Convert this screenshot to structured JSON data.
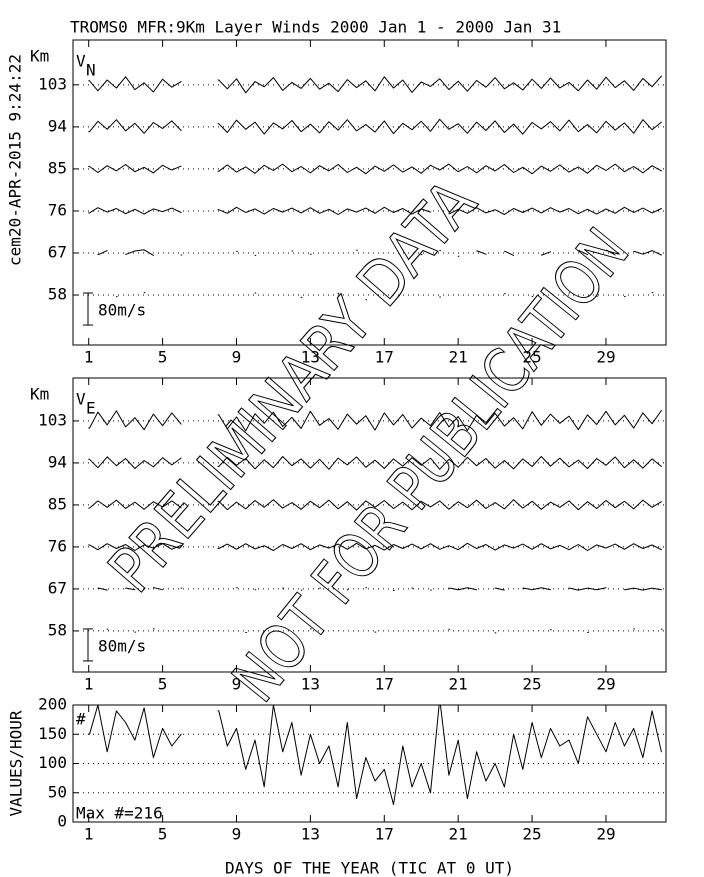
{
  "title": "TROMS0 MFR:9Km Layer Winds 2000 Jan  1 - 2000 Jan 31",
  "stamp": "cem20-APR-2015  9:24:22",
  "watermark": [
    "PRELIMINARY DATA",
    "NOT FOR PUBLICATION"
  ],
  "chart_data": [
    {
      "type": "traces",
      "y_unit": "Km",
      "component": "V",
      "component_sub": "N",
      "xlim": [
        0.15,
        32.25
      ],
      "xticks": [
        1,
        5,
        9,
        13,
        17,
        21,
        25,
        29
      ],
      "ylim": [
        47.3,
        112.6
      ],
      "yticks": [
        58,
        67,
        76,
        85,
        94,
        103
      ],
      "grid": true,
      "scale_bar": {
        "value": 80,
        "label": "80m/s"
      },
      "x": [
        1,
        1.5,
        2,
        2.5,
        3,
        3.5,
        4,
        4.5,
        5,
        5.5,
        6,
        6.5,
        7,
        7.5,
        8,
        8.5,
        9,
        9.5,
        10,
        10.5,
        11,
        11.5,
        12,
        12.5,
        13,
        13.5,
        14,
        14.5,
        15,
        15.5,
        16,
        16.5,
        17,
        17.5,
        18,
        18.5,
        19,
        19.5,
        20,
        20.5,
        21,
        21.5,
        22,
        22.5,
        23,
        23.5,
        24,
        24.5,
        25,
        25.5,
        26,
        26.5,
        27,
        27.5,
        28,
        28.5,
        29,
        29.5,
        30,
        30.5,
        31,
        31.5,
        32
      ],
      "series": [
        {
          "height": 103,
          "color": "#000000",
          "values": [
            10,
            -15,
            12,
            -8,
            20,
            -12,
            5,
            -18,
            14,
            -6,
            8,
            null,
            null,
            null,
            12,
            -10,
            15,
            -20,
            8,
            -5,
            18,
            -14,
            6,
            -9,
            16,
            -11,
            4,
            -17,
            13,
            -7,
            10,
            -15,
            20,
            -8,
            12,
            -19,
            7,
            -4,
            15,
            -12,
            9,
            -16,
            11,
            -6,
            18,
            -10,
            5,
            -13,
            14,
            -9,
            17,
            -8,
            6,
            -15,
            12,
            -11,
            19,
            -7,
            10,
            -14,
            16,
            -5,
            22
          ]
        },
        {
          "height": 94,
          "color": "#000000",
          "values": [
            -12,
            14,
            -6,
            18,
            -10,
            9,
            -16,
            11,
            -4,
            15,
            -9,
            null,
            null,
            null,
            8,
            -14,
            17,
            -6,
            12,
            -18,
            10,
            -5,
            16,
            -12,
            7,
            -15,
            13,
            -8,
            18,
            -10,
            6,
            -13,
            15,
            -17,
            9,
            -7,
            14,
            -11,
            19,
            -6,
            8,
            -16,
            12,
            -9,
            15,
            -14,
            7,
            -18,
            11,
            -5,
            13,
            -10,
            17,
            -12,
            6,
            -15,
            14,
            -8,
            10,
            -16,
            18,
            -7,
            12
          ]
        },
        {
          "height": 85,
          "color": "#000000",
          "values": [
            6,
            -9,
            8,
            -5,
            11,
            -7,
            4,
            -10,
            9,
            -3,
            7,
            null,
            null,
            null,
            -6,
            10,
            -8,
            5,
            -11,
            9,
            -4,
            12,
            -7,
            6,
            -10,
            8,
            -5,
            11,
            -9,
            4,
            -12,
            7,
            -6,
            10,
            -8,
            5,
            -11,
            9,
            -3,
            12,
            -7,
            6,
            -10,
            8,
            -5,
            11,
            -9,
            4,
            -12,
            7,
            -6,
            10,
            -8,
            5,
            -11,
            9,
            -4,
            12,
            -7,
            6,
            -10,
            8,
            -5
          ]
        },
        {
          "height": 76,
          "color": "#000000",
          "values": [
            -5,
            8,
            -3,
            6,
            -7,
            4,
            -8,
            5,
            -2,
            7,
            -4,
            null,
            null,
            null,
            3,
            -6,
            9,
            -4,
            5,
            -8,
            6,
            -3,
            7,
            -5,
            8,
            -6,
            4,
            -9,
            5,
            -3,
            7,
            -6,
            9,
            -4,
            6,
            -8,
            5,
            -3,
            null,
            -7,
            4,
            -6,
            8,
            -5,
            3,
            -9,
            6,
            -4,
            7,
            -5,
            8,
            -3,
            6,
            -7,
            4,
            -8,
            5,
            -6,
            9,
            -4,
            7,
            -5,
            6
          ]
        },
        {
          "height": 67,
          "color": "#000000",
          "values": [
            null,
            -4,
            6,
            null,
            -3,
            5,
            8,
            -6,
            null,
            null,
            -5,
            null,
            null,
            null,
            null,
            null,
            4,
            null,
            -6,
            null,
            null,
            null,
            5,
            null,
            -3,
            null,
            null,
            null,
            null,
            7,
            null,
            null,
            null,
            null,
            null,
            null,
            -4,
            null,
            6,
            null,
            -8,
            null,
            5,
            -3,
            null,
            4,
            -6,
            null,
            null,
            -5,
            3,
            null,
            null,
            6,
            -4,
            null,
            7,
            -5,
            null,
            4,
            -3,
            6,
            -5
          ]
        },
        {
          "height": 58,
          "color": "#000000",
          "values": [
            null,
            null,
            null,
            -4,
            null,
            null,
            6,
            null,
            null,
            null,
            null,
            null,
            null,
            null,
            null,
            null,
            null,
            null,
            5,
            null,
            null,
            null,
            null,
            -6,
            null,
            null,
            null,
            4,
            null,
            null,
            -12,
            null,
            null,
            null,
            null,
            null,
            null,
            null,
            -5,
            null,
            null,
            null,
            null,
            null,
            null,
            3,
            null,
            null,
            -4,
            null,
            null,
            null,
            5,
            null,
            null,
            -3,
            null,
            null,
            -4,
            null,
            null,
            6,
            null
          ]
        }
      ]
    },
    {
      "type": "traces",
      "y_unit": "Km",
      "component": "V",
      "component_sub": "E",
      "xlim": [
        0.15,
        32.25
      ],
      "xticks": [
        1,
        5,
        9,
        13,
        17,
        21,
        25,
        29
      ],
      "ylim": [
        49.2,
        112.2
      ],
      "yticks": [
        58,
        67,
        76,
        85,
        94,
        103
      ],
      "grid": true,
      "scale_bar": {
        "value": 80,
        "label": "80m/s"
      },
      "x": [
        1,
        1.5,
        2,
        2.5,
        3,
        3.5,
        4,
        4.5,
        5,
        5.5,
        6,
        6.5,
        7,
        7.5,
        8,
        8.5,
        9,
        9.5,
        10,
        10.5,
        11,
        11.5,
        12,
        12.5,
        13,
        13.5,
        14,
        14.5,
        15,
        15.5,
        16,
        16.5,
        17,
        17.5,
        18,
        18.5,
        19,
        19.5,
        20,
        20.5,
        21,
        21.5,
        22,
        22.5,
        23,
        23.5,
        24,
        24.5,
        25,
        25.5,
        26,
        26.5,
        27,
        27.5,
        28,
        28.5,
        29,
        29.5,
        30,
        30.5,
        31,
        31.5,
        32
      ],
      "series": [
        {
          "height": 103,
          "color": "#000000",
          "values": [
            -18,
            22,
            -10,
            25,
            -15,
            8,
            -22,
            17,
            -12,
            20,
            -8,
            null,
            null,
            null,
            15,
            -20,
            10,
            -25,
            18,
            -6,
            22,
            -14,
            9,
            -19,
            24,
            -11,
            6,
            -21,
            17,
            -8,
            13,
            -23,
            20,
            -10,
            16,
            -18,
            7,
            -12,
            21,
            -15,
            11,
            -24,
            14,
            -9,
            19,
            -13,
            8,
            -20,
            23,
            -11,
            17,
            -6,
            12,
            -22,
            15,
            -9,
            24,
            -10,
            14,
            -18,
            20,
            -7,
            26
          ]
        },
        {
          "height": 94,
          "color": "#000000",
          "values": [
            9,
            -12,
            15,
            -7,
            11,
            -14,
            6,
            -10,
            13,
            -5,
            12,
            null,
            null,
            null,
            -9,
            14,
            -6,
            11,
            -15,
            8,
            -12,
            16,
            -7,
            10,
            -13,
            9,
            -16,
            12,
            -5,
            15,
            -11,
            7,
            -14,
            10,
            -8,
            13,
            -6,
            12,
            -16,
            9,
            -11,
            14,
            -7,
            11,
            -13,
            6,
            -15,
            10,
            -9,
            16,
            -8,
            12,
            -10,
            7,
            -14,
            11,
            -6,
            15,
            -12,
            8,
            -13,
            10,
            -9
          ]
        },
        {
          "height": 85,
          "color": "#000000",
          "values": [
            -8,
            10,
            -6,
            12,
            -9,
            7,
            -11,
            8,
            -5,
            10,
            -7,
            null,
            null,
            null,
            9,
            -12,
            7,
            -10,
            11,
            -6,
            13,
            -8,
            6,
            -11,
            9,
            -7,
            12,
            -10,
            8,
            -13,
            10,
            -6,
            11,
            -9,
            7,
            -12,
            9,
            -5,
            10,
            -11,
            8,
            -7,
            12,
            -9,
            6,
            -10,
            13,
            -8,
            9,
            -11,
            7,
            -6,
            10,
            -12,
            8,
            -9,
            11,
            -7,
            9,
            -10,
            12,
            -6,
            8
          ]
        },
        {
          "height": 76,
          "color": "#000000",
          "values": [
            5,
            -7,
            8,
            -4,
            6,
            -9,
            5,
            -3,
            8,
            -6,
            4,
            null,
            null,
            null,
            -4,
            7,
            -6,
            8,
            -5,
            3,
            -9,
            6,
            -4,
            8,
            -7,
            5,
            -3,
            7,
            -6,
            9,
            -5,
            4,
            -8,
            6,
            -4,
            7,
            -5,
            8,
            -6,
            3,
            -7,
            9,
            -4,
            6,
            -8,
            5,
            -3,
            7,
            -6,
            8,
            -5,
            4,
            -7,
            6,
            -9,
            5,
            -3,
            7,
            -6,
            8,
            -4,
            5,
            -7
          ]
        },
        {
          "height": 67,
          "color": "#000000",
          "values": [
            null,
            2,
            -3,
            null,
            2,
            -2,
            null,
            3,
            -2,
            null,
            2,
            null,
            null,
            null,
            null,
            null,
            3,
            null,
            -2,
            null,
            null,
            2,
            null,
            -3,
            null,
            2,
            null,
            null,
            -2,
            null,
            3,
            null,
            null,
            -4,
            null,
            2,
            null,
            -3,
            null,
            2,
            -2,
            3,
            -2,
            null,
            2,
            -3,
            null,
            2,
            -2,
            3,
            -2,
            null,
            2,
            -3,
            2,
            -2,
            3,
            null,
            -2,
            2,
            -3,
            2,
            -2
          ]
        },
        {
          "height": 58,
          "color": "#000000",
          "values": [
            null,
            null,
            4,
            null,
            null,
            -3,
            null,
            5,
            null,
            null,
            null,
            null,
            null,
            null,
            null,
            null,
            null,
            -4,
            null,
            null,
            null,
            null,
            null,
            null,
            5,
            null,
            null,
            null,
            null,
            null,
            null,
            -3,
            null,
            null,
            null,
            null,
            null,
            null,
            null,
            4,
            null,
            null,
            null,
            null,
            -5,
            null,
            null,
            null,
            null,
            null,
            3,
            null,
            null,
            null,
            -4,
            null,
            null,
            null,
            null,
            5,
            null,
            null,
            4
          ]
        }
      ]
    },
    {
      "type": "line",
      "y_label": "VALUES/HOUR",
      "marker_label": "#",
      "note": "Max #=216",
      "x_label": "DAYS OF THE YEAR (TIC AT 0 UT)",
      "xlim": [
        0.15,
        32.25
      ],
      "xticks": [
        1,
        5,
        9,
        13,
        17,
        21,
        25,
        29
      ],
      "ylim": [
        0,
        200
      ],
      "yticks": [
        0,
        50,
        100,
        150,
        200
      ],
      "grid": true,
      "color": "#000000",
      "x": [
        1,
        1.5,
        2,
        2.5,
        3,
        3.5,
        4,
        4.5,
        5,
        5.5,
        6,
        6.5,
        7,
        7.5,
        8,
        8.5,
        9,
        9.5,
        10,
        10.5,
        11,
        11.5,
        12,
        12.5,
        13,
        13.5,
        14,
        14.5,
        15,
        15.5,
        16,
        16.5,
        17,
        17.5,
        18,
        18.5,
        19,
        19.5,
        20,
        20.5,
        21,
        21.5,
        22,
        22.5,
        23,
        23.5,
        24,
        24.5,
        25,
        25.5,
        26,
        26.5,
        27,
        27.5,
        28,
        28.5,
        29,
        29.5,
        30,
        30.5,
        31,
        31.5,
        32
      ],
      "values": [
        150,
        200,
        120,
        190,
        170,
        140,
        195,
        110,
        160,
        130,
        150,
        null,
        null,
        null,
        190,
        130,
        160,
        90,
        140,
        60,
        200,
        120,
        170,
        80,
        150,
        100,
        130,
        60,
        170,
        40,
        110,
        70,
        90,
        30,
        130,
        60,
        100,
        50,
        210,
        80,
        140,
        40,
        120,
        70,
        100,
        60,
        150,
        90,
        170,
        110,
        160,
        130,
        140,
        100,
        180,
        150,
        120,
        170,
        130,
        160,
        110,
        190,
        120
      ]
    }
  ]
}
